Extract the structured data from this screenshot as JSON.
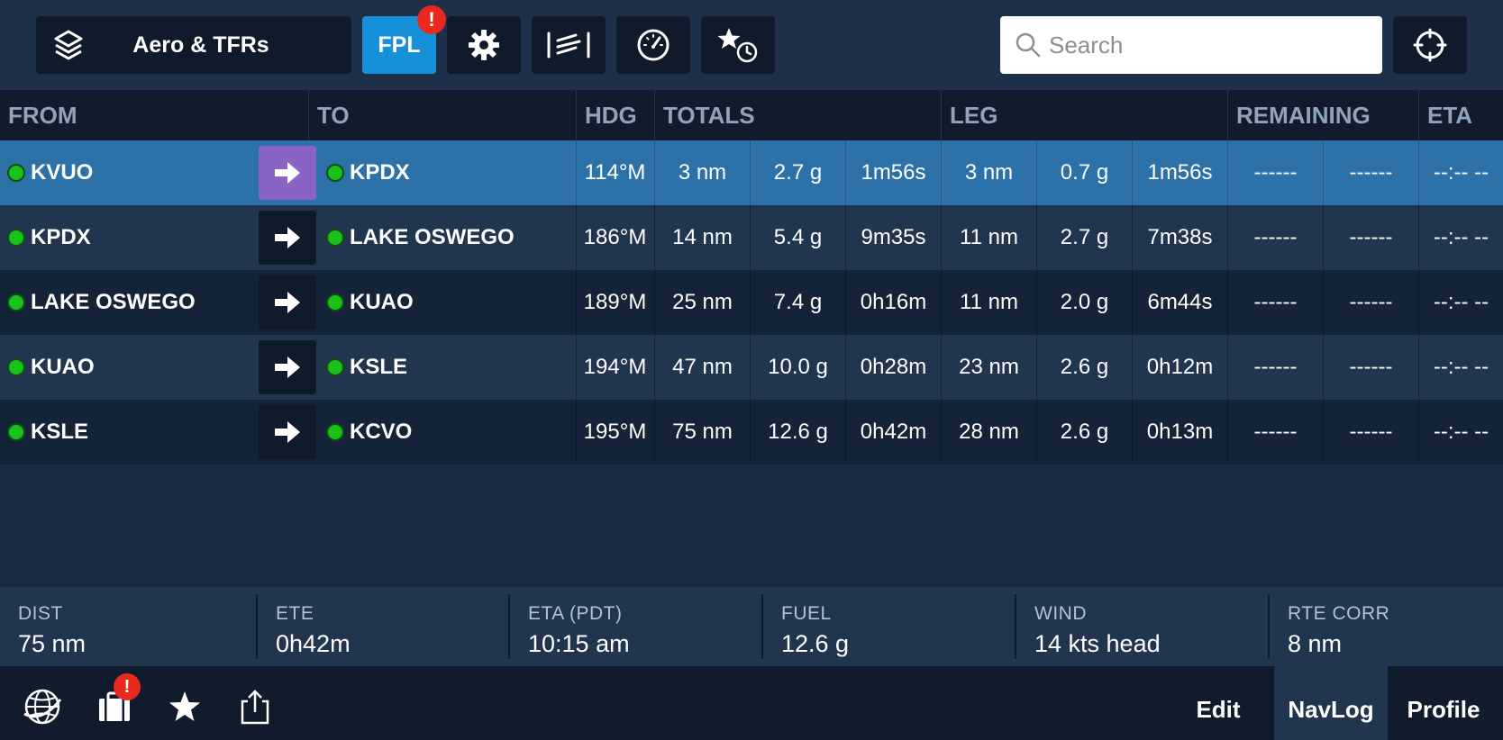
{
  "toolbar": {
    "layers_label": "Aero & TFRs",
    "fpl_label": "FPL",
    "fpl_alert": "!",
    "search_placeholder": "Search"
  },
  "table": {
    "headers": {
      "from": "FROM",
      "to": "TO",
      "hdg": "HDG",
      "totals": "TOTALS",
      "leg": "LEG",
      "remaining": "REMAINING",
      "eta": "ETA"
    },
    "rows": [
      {
        "from": "KVUO",
        "to": "KPDX",
        "hdg": "114°M",
        "tot_dist": "3 nm",
        "tot_fuel": "2.7 g",
        "tot_time": "1m56s",
        "leg_dist": "3 nm",
        "leg_fuel": "0.7 g",
        "leg_time": "1m56s",
        "rem_1": "------",
        "rem_2": "------",
        "eta": "--:-- --"
      },
      {
        "from": "KPDX",
        "to": "LAKE OSWEGO",
        "hdg": "186°M",
        "tot_dist": "14 nm",
        "tot_fuel": "5.4 g",
        "tot_time": "9m35s",
        "leg_dist": "11 nm",
        "leg_fuel": "2.7 g",
        "leg_time": "7m38s",
        "rem_1": "------",
        "rem_2": "------",
        "eta": "--:-- --"
      },
      {
        "from": "LAKE OSWEGO",
        "to": "KUAO",
        "hdg": "189°M",
        "tot_dist": "25 nm",
        "tot_fuel": "7.4 g",
        "tot_time": "0h16m",
        "leg_dist": "11 nm",
        "leg_fuel": "2.0 g",
        "leg_time": "6m44s",
        "rem_1": "------",
        "rem_2": "------",
        "eta": "--:-- --"
      },
      {
        "from": "KUAO",
        "to": "KSLE",
        "hdg": "194°M",
        "tot_dist": "47 nm",
        "tot_fuel": "10.0 g",
        "tot_time": "0h28m",
        "leg_dist": "23 nm",
        "leg_fuel": "2.6 g",
        "leg_time": "0h12m",
        "rem_1": "------",
        "rem_2": "------",
        "eta": "--:-- --"
      },
      {
        "from": "KSLE",
        "to": "KCVO",
        "hdg": "195°M",
        "tot_dist": "75 nm",
        "tot_fuel": "12.6 g",
        "tot_time": "0h42m",
        "leg_dist": "28 nm",
        "leg_fuel": "2.6 g",
        "leg_time": "0h13m",
        "rem_1": "------",
        "rem_2": "------",
        "eta": "--:-- --"
      }
    ],
    "active_row": 0
  },
  "summary": {
    "dist_label": "DIST",
    "dist_value": "75 nm",
    "ete_label": "ETE",
    "ete_value": "0h42m",
    "eta_label": "ETA (PDT)",
    "eta_value": "10:15 am",
    "fuel_label": "FUEL",
    "fuel_value": "12.6 g",
    "wind_label": "WIND",
    "wind_value": "14 kts head",
    "rte_label": "RTE CORR",
    "rte_value": "8 nm"
  },
  "bottombar": {
    "bags_alert": "!",
    "tab_edit": "Edit",
    "tab_navlog": "NavLog",
    "tab_profile": "Profile"
  },
  "colors": {
    "background": "#1b2a42",
    "fpl_active": "#1691d9",
    "alert": "#e8291f",
    "active_row": "#2c72a8",
    "active_arrow": "#8a64c4",
    "waypoint_dot": "#19c11a"
  },
  "icons": [
    "layers-icon",
    "gear-icon",
    "wind-icon",
    "gauge-icon",
    "star-clock-icon",
    "search-icon",
    "crosshair-icon",
    "globe-icon",
    "briefcase-icon",
    "star-icon",
    "share-icon",
    "arrow-right-icon"
  ]
}
